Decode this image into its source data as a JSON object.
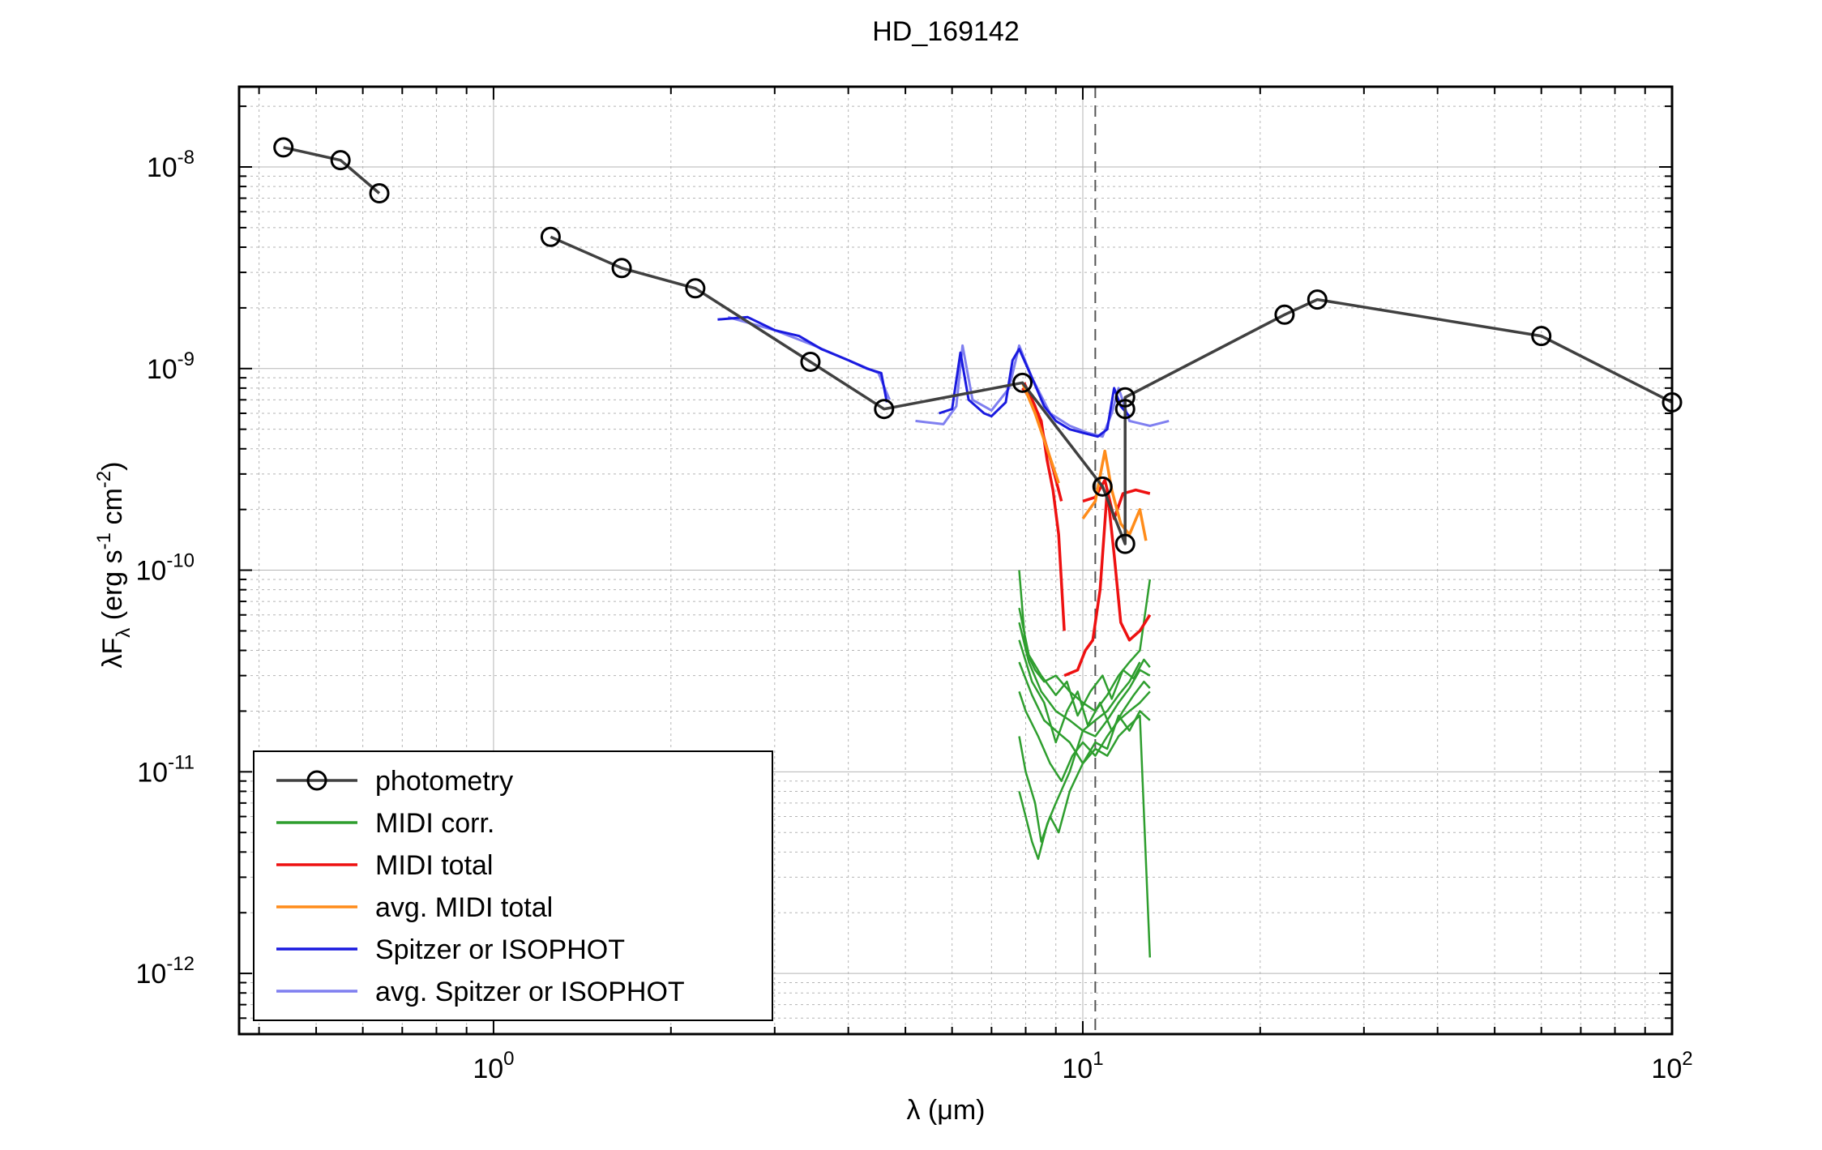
{
  "chart_data": {
    "type": "line",
    "title": "HD_169142",
    "xlabel": "λ (μm)",
    "ylabel": "λF_λ (erg s^-1 cm^-2)",
    "xscale": "log",
    "yscale": "log",
    "xlim": [
      0.37,
      100
    ],
    "ylim": [
      5e-13,
      2.5e-08
    ],
    "grid": true,
    "legend_position": "bottom-left",
    "x_ticks": [
      {
        "base": "10",
        "exp": "0",
        "value": 1
      },
      {
        "base": "10",
        "exp": "1",
        "value": 10
      },
      {
        "base": "10",
        "exp": "2",
        "value": 100
      }
    ],
    "y_ticks": [
      {
        "base": "10",
        "exp": "-8",
        "value": 1e-08
      },
      {
        "base": "10",
        "exp": "-9",
        "value": 1e-09
      },
      {
        "base": "10",
        "exp": "-10",
        "value": 1e-10
      },
      {
        "base": "10",
        "exp": "-11",
        "value": 1e-11
      },
      {
        "base": "10",
        "exp": "-12",
        "value": 1e-12
      }
    ],
    "vline": {
      "x": 10.5,
      "style": "dashed"
    },
    "colors": {
      "photometry": "#404040",
      "midi_corr": "#2e9e2e",
      "midi_total": "#ee1111",
      "avg_midi_total": "#ff8c1a",
      "spitzer": "#1a1adf",
      "avg_spitzer": "#7f7ff0"
    },
    "legend": [
      {
        "label": "photometry",
        "key": "photometry"
      },
      {
        "label": "MIDI corr.",
        "key": "midi_corr"
      },
      {
        "label": "MIDI total",
        "key": "midi_total"
      },
      {
        "label": "avg. MIDI total",
        "key": "avg_midi_total"
      },
      {
        "label": "Spitzer or ISOPHOT",
        "key": "spitzer"
      },
      {
        "label": "avg. Spitzer or ISOPHOT",
        "key": "avg_spitzer"
      }
    ],
    "series": [
      {
        "key": "photometry",
        "segments": [
          [
            [
              0.44,
              1.25e-08
            ],
            [
              0.55,
              1.08e-08
            ],
            [
              0.64,
              7.4e-09
            ]
          ],
          [
            [
              1.25,
              4.5e-09
            ],
            [
              1.65,
              3.15e-09
            ],
            [
              2.2,
              2.5e-09
            ],
            [
              3.45,
              1.08e-09
            ],
            [
              4.6,
              6.3e-10
            ],
            [
              7.9,
              8.5e-10
            ],
            [
              10.8,
              2.6e-10
            ],
            [
              11.8,
              1.35e-10
            ],
            [
              11.8,
              6.3e-10
            ],
            [
              11.8,
              7.2e-10
            ],
            [
              22.0,
              1.85e-09
            ],
            [
              25.0,
              2.2e-09
            ],
            [
              60.0,
              1.45e-09
            ],
            [
              100.0,
              6.8e-10
            ]
          ]
        ]
      },
      {
        "key": "spitzer",
        "segments": [
          [
            [
              2.4,
              1.75e-09
            ],
            [
              2.7,
              1.8e-09
            ],
            [
              3.0,
              1.55e-09
            ],
            [
              3.3,
              1.45e-09
            ],
            [
              3.6,
              1.25e-09
            ],
            [
              4.0,
              1.1e-09
            ],
            [
              4.3,
              1e-09
            ],
            [
              4.55,
              9.5e-10
            ],
            [
              4.65,
              6.8e-10
            ]
          ],
          [
            [
              5.7,
              6e-10
            ],
            [
              6.0,
              6.3e-10
            ],
            [
              6.2,
              1.2e-09
            ],
            [
              6.4,
              7e-10
            ],
            [
              6.8,
              6e-10
            ],
            [
              7.0,
              5.8e-10
            ],
            [
              7.4,
              6.8e-10
            ],
            [
              7.6,
              1.1e-09
            ],
            [
              7.8,
              1.25e-09
            ],
            [
              8.2,
              9e-10
            ],
            [
              8.6,
              6.5e-10
            ],
            [
              9.0,
              5.5e-10
            ],
            [
              9.5,
              5e-10
            ],
            [
              10.0,
              4.8e-10
            ],
            [
              10.6,
              4.6e-10
            ],
            [
              11.0,
              5e-10
            ],
            [
              11.3,
              8e-10
            ],
            [
              11.6,
              6.5e-10
            ],
            [
              12.0,
              5.8e-10
            ]
          ]
        ]
      },
      {
        "key": "avg_spitzer",
        "segments": [
          [
            [
              2.5,
              1.8e-09
            ],
            [
              3.0,
              1.55e-09
            ],
            [
              3.5,
              1.3e-09
            ],
            [
              4.0,
              1.1e-09
            ],
            [
              4.5,
              9.5e-10
            ],
            [
              4.7,
              7e-10
            ]
          ],
          [
            [
              5.2,
              5.5e-10
            ],
            [
              5.8,
              5.3e-10
            ],
            [
              6.1,
              6.5e-10
            ],
            [
              6.25,
              1.3e-09
            ],
            [
              6.5,
              7e-10
            ],
            [
              7.0,
              6.2e-10
            ],
            [
              7.5,
              8e-10
            ],
            [
              7.8,
              1.3e-09
            ],
            [
              8.2,
              9e-10
            ],
            [
              8.8,
              6e-10
            ],
            [
              9.5,
              5.2e-10
            ],
            [
              10.2,
              4.8e-10
            ],
            [
              10.8,
              4.6e-10
            ],
            [
              11.2,
              6e-10
            ],
            [
              11.5,
              8e-10
            ],
            [
              12.0,
              5.5e-10
            ],
            [
              13.0,
              5.2e-10
            ],
            [
              14.0,
              5.5e-10
            ]
          ]
        ]
      },
      {
        "key": "midi_total",
        "segments": [
          [
            [
              7.9,
              8e-10
            ],
            [
              8.2,
              7e-10
            ],
            [
              8.5,
              5.5e-10
            ],
            [
              8.7,
              3.5e-10
            ],
            [
              8.9,
              2.5e-10
            ],
            [
              9.1,
              1.5e-10
            ],
            [
              9.3,
              5e-11
            ]
          ],
          [
            [
              7.95,
              8.5e-10
            ],
            [
              8.3,
              6.5e-10
            ],
            [
              8.6,
              4.5e-10
            ],
            [
              8.9,
              3.2e-10
            ],
            [
              9.2,
              2.2e-10
            ]
          ],
          [
            [
              9.3,
              3e-11
            ],
            [
              9.8,
              3.2e-11
            ],
            [
              10.1,
              4e-11
            ],
            [
              10.4,
              4.5e-11
            ],
            [
              10.7,
              8e-11
            ],
            [
              11.0,
              2.5e-10
            ],
            [
              11.3,
              1.2e-10
            ],
            [
              11.6,
              5.5e-11
            ],
            [
              12.0,
              4.5e-11
            ],
            [
              12.5,
              5e-11
            ],
            [
              13.0,
              6e-11
            ]
          ],
          [
            [
              10.0,
              2.2e-10
            ],
            [
              10.5,
              2.3e-10
            ],
            [
              10.9,
              2.8e-10
            ],
            [
              11.3,
              1.8e-10
            ],
            [
              11.7,
              2.4e-10
            ],
            [
              12.3,
              2.5e-10
            ],
            [
              13.0,
              2.4e-10
            ]
          ]
        ]
      },
      {
        "key": "avg_midi_total",
        "segments": [
          [
            [
              7.9,
              8.5e-10
            ],
            [
              8.3,
              6e-10
            ],
            [
              8.7,
              4e-10
            ],
            [
              9.1,
              2.7e-10
            ]
          ],
          [
            [
              10.0,
              1.8e-10
            ],
            [
              10.5,
              2.2e-10
            ],
            [
              10.9,
              3.9e-10
            ],
            [
              11.2,
              2.5e-10
            ],
            [
              11.6,
              1.7e-10
            ],
            [
              12.0,
              1.5e-10
            ],
            [
              12.5,
              2e-10
            ],
            [
              12.8,
              1.4e-10
            ]
          ]
        ]
      },
      {
        "key": "midi_corr",
        "segments": [
          [
            [
              7.8,
              1e-10
            ],
            [
              8.0,
              4e-11
            ],
            [
              8.3,
              3.2e-11
            ],
            [
              8.6,
              2.8e-11
            ],
            [
              9.0,
              3e-11
            ],
            [
              9.5,
              2.5e-11
            ],
            [
              10.0,
              2.2e-11
            ],
            [
              10.5,
              2e-11
            ],
            [
              11.0,
              2.4e-11
            ],
            [
              11.5,
              3e-11
            ],
            [
              12.0,
              3.5e-11
            ],
            [
              12.5,
              4e-11
            ],
            [
              13.0,
              9e-11
            ]
          ],
          [
            [
              7.8,
              5.5e-11
            ],
            [
              8.1,
              3.5e-11
            ],
            [
              8.5,
              2.5e-11
            ],
            [
              9.0,
              2e-11
            ],
            [
              9.5,
              1.8e-11
            ],
            [
              10.0,
              1.6e-11
            ],
            [
              10.5,
              1.5e-11
            ],
            [
              11.0,
              1.8e-11
            ],
            [
              11.5,
              2.2e-11
            ],
            [
              12.0,
              2.6e-11
            ],
            [
              12.5,
              3.2e-11
            ],
            [
              13.0,
              3e-11
            ]
          ],
          [
            [
              7.8,
              2.5e-11
            ],
            [
              8.0,
              2e-11
            ],
            [
              8.4,
              1.5e-11
            ],
            [
              8.8,
              1.1e-11
            ],
            [
              9.2,
              9e-12
            ],
            [
              9.6,
              1.2e-11
            ],
            [
              10.0,
              1.4e-11
            ],
            [
              10.5,
              1.2e-11
            ],
            [
              11.0,
              1.5e-11
            ],
            [
              11.5,
              1.8e-11
            ],
            [
              12.0,
              2e-11
            ],
            [
              12.5,
              2.2e-11
            ],
            [
              13.0,
              2.5e-11
            ]
          ],
          [
            [
              7.8,
              1.5e-11
            ],
            [
              8.0,
              1e-11
            ],
            [
              8.3,
              7e-12
            ],
            [
              8.5,
              4.5e-12
            ],
            [
              8.8,
              6e-12
            ],
            [
              9.1,
              5e-12
            ],
            [
              9.5,
              8e-12
            ],
            [
              10.0,
              1.1e-11
            ],
            [
              10.5,
              1.3e-11
            ],
            [
              11.0,
              1.2e-11
            ],
            [
              11.5,
              1.5e-11
            ],
            [
              12.0,
              1.7e-11
            ],
            [
              12.5,
              1.9e-11
            ],
            [
              13.0,
              1.2e-12
            ]
          ],
          [
            [
              7.8,
              8e-12
            ],
            [
              8.0,
              6e-12
            ],
            [
              8.2,
              4.5e-12
            ],
            [
              8.4,
              3.7e-12
            ],
            [
              8.7,
              5.5e-12
            ],
            [
              9.0,
              7e-12
            ],
            [
              9.5,
              1e-11
            ],
            [
              10.0,
              1.6e-11
            ],
            [
              10.5,
              1.8e-11
            ],
            [
              11.0,
              2e-11
            ],
            [
              11.5,
              2.4e-11
            ],
            [
              12.0,
              2.8e-11
            ],
            [
              12.5,
              3.5e-11
            ]
          ],
          [
            [
              7.8,
              4.5e-11
            ],
            [
              8.2,
              2.8e-11
            ],
            [
              8.6,
              2.2e-11
            ],
            [
              9.0,
              1.4e-11
            ],
            [
              9.4,
              2e-11
            ],
            [
              9.8,
              2.5e-11
            ],
            [
              10.2,
              1.7e-11
            ],
            [
              10.7,
              2.2e-11
            ],
            [
              11.2,
              1.6e-11
            ],
            [
              11.7,
              2e-11
            ],
            [
              12.2,
              2.4e-11
            ],
            [
              12.7,
              2.8e-11
            ],
            [
              13.0,
              2.6e-11
            ]
          ],
          [
            [
              7.8,
              3.5e-11
            ],
            [
              8.2,
              2.4e-11
            ],
            [
              8.6,
              1.8e-11
            ],
            [
              9.0,
              1.6e-11
            ],
            [
              9.5,
              1.4e-11
            ],
            [
              10.0,
              1.1e-11
            ],
            [
              10.5,
              1.4e-11
            ],
            [
              11.0,
              1.3e-11
            ],
            [
              11.5,
              1.9e-11
            ],
            [
              12.0,
              1.6e-11
            ],
            [
              12.5,
              2e-11
            ],
            [
              13.0,
              1.8e-11
            ]
          ],
          [
            [
              7.8,
              6.5e-11
            ],
            [
              8.1,
              3.8e-11
            ],
            [
              8.5,
              3e-11
            ],
            [
              9.0,
              2.4e-11
            ],
            [
              9.4,
              2.8e-11
            ],
            [
              9.8,
              1.9e-11
            ],
            [
              10.3,
              2.5e-11
            ],
            [
              10.8,
              3e-11
            ],
            [
              11.2,
              2.3e-11
            ],
            [
              11.7,
              3.2e-11
            ],
            [
              12.2,
              2.9e-11
            ],
            [
              12.7,
              3.6e-11
            ],
            [
              13.0,
              3.3e-11
            ]
          ]
        ]
      }
    ]
  }
}
